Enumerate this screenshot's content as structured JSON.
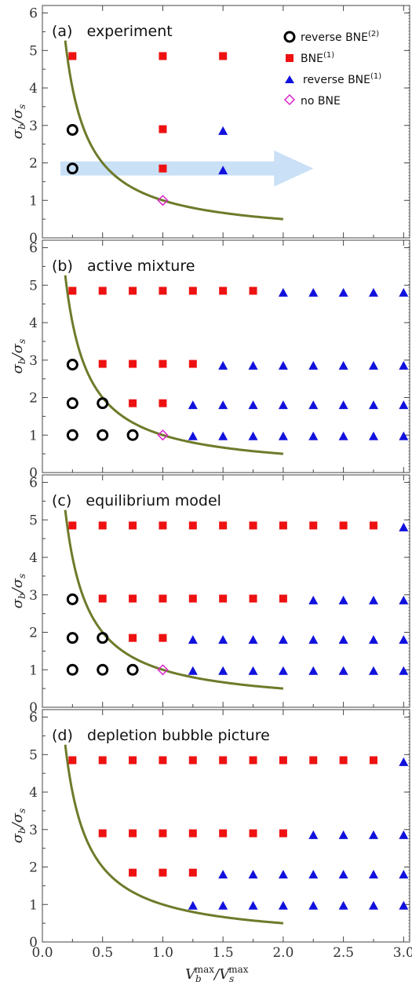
{
  "figure": {
    "xlabel_main": "V",
    "xlabel_sub_b": "b",
    "xlabel_sub_s": "s",
    "xlabel_sup": "max",
    "xlabel_sep": "/",
    "ylabel_main": "σ",
    "ylabel_sub_b": "b",
    "ylabel_sub_s": "s",
    "ylabel_sep": "/"
  },
  "legend": [
    {
      "marker": "circle",
      "label": "reverse BNE",
      "sup": "(2)"
    },
    {
      "marker": "square",
      "label": "BNE",
      "sup": "(1)"
    },
    {
      "marker": "triangle",
      "label": "reverse BNE",
      "sup": "(1)"
    },
    {
      "marker": "diamond",
      "label": "no BNE",
      "sup": ""
    }
  ],
  "colors": {
    "curve": "#6f7a2a",
    "square": "#ee1111",
    "triangle": "#1111dd",
    "circle": "#000000",
    "diamond": "#dd22cc",
    "arrow": "#c6def5"
  },
  "chart_data": [
    {
      "type": "scatter",
      "title": "(a)   experiment",
      "xlim": [
        0,
        3.05
      ],
      "ylim": [
        0,
        6.2
      ],
      "xticks": [
        0.0,
        0.5,
        1.0,
        1.5,
        2.0,
        2.5,
        3.0
      ],
      "yticks": [
        0,
        1,
        2,
        3,
        4,
        5,
        6
      ],
      "curve": {
        "formula": "y = 1/x",
        "xrange": [
          0.19,
          2.0
        ]
      },
      "arrow": {
        "from": [
          0.15,
          1.85
        ],
        "to": [
          2.25,
          1.85
        ]
      },
      "circles": [
        [
          0.25,
          1.85
        ],
        [
          0.25,
          2.88
        ]
      ],
      "squares": [
        [
          0.25,
          4.85
        ],
        [
          1.0,
          1.85
        ],
        [
          1.0,
          2.9
        ],
        [
          1.0,
          4.85
        ],
        [
          1.5,
          4.85
        ]
      ],
      "triangles": [
        [
          1.5,
          1.8
        ],
        [
          1.5,
          2.85
        ]
      ],
      "diamonds": [
        [
          1.0,
          1.0
        ]
      ]
    },
    {
      "type": "scatter",
      "title": "(b)   active mixture",
      "xlim": [
        0,
        3.05
      ],
      "ylim": [
        0,
        6.2
      ],
      "xticks": [
        0.0,
        0.5,
        1.0,
        1.5,
        2.0,
        2.5,
        3.0
      ],
      "yticks": [
        0,
        1,
        2,
        3,
        4,
        5,
        6
      ],
      "curve": {
        "formula": "y = 1/x",
        "xrange": [
          0.19,
          2.0
        ]
      },
      "circles": [
        [
          0.25,
          1.0
        ],
        [
          0.5,
          1.0
        ],
        [
          0.75,
          1.0
        ],
        [
          0.25,
          1.85
        ],
        [
          0.5,
          1.85
        ],
        [
          0.25,
          2.88
        ]
      ],
      "squares": [
        [
          0.75,
          1.85
        ],
        [
          1.0,
          1.85
        ],
        [
          0.5,
          2.9
        ],
        [
          0.75,
          2.9
        ],
        [
          1.0,
          2.9
        ],
        [
          1.25,
          2.9
        ],
        [
          0.25,
          4.85
        ],
        [
          0.5,
          4.85
        ],
        [
          0.75,
          4.85
        ],
        [
          1.0,
          4.85
        ],
        [
          1.25,
          4.85
        ],
        [
          1.5,
          4.85
        ],
        [
          1.75,
          4.85
        ]
      ],
      "triangles": [
        [
          1.25,
          0.97
        ],
        [
          1.5,
          0.97
        ],
        [
          1.75,
          0.97
        ],
        [
          2.0,
          0.97
        ],
        [
          2.25,
          0.97
        ],
        [
          2.5,
          0.97
        ],
        [
          2.75,
          0.97
        ],
        [
          3.0,
          0.97
        ],
        [
          1.25,
          1.8
        ],
        [
          1.5,
          1.8
        ],
        [
          1.75,
          1.8
        ],
        [
          2.0,
          1.8
        ],
        [
          2.25,
          1.8
        ],
        [
          2.5,
          1.8
        ],
        [
          2.75,
          1.8
        ],
        [
          3.0,
          1.8
        ],
        [
          1.5,
          2.85
        ],
        [
          1.75,
          2.85
        ],
        [
          2.0,
          2.85
        ],
        [
          2.25,
          2.85
        ],
        [
          2.5,
          2.85
        ],
        [
          2.75,
          2.85
        ],
        [
          3.0,
          2.85
        ],
        [
          2.0,
          4.8
        ],
        [
          2.25,
          4.8
        ],
        [
          2.5,
          4.8
        ],
        [
          2.75,
          4.8
        ],
        [
          3.0,
          4.8
        ]
      ],
      "diamonds": [
        [
          1.0,
          1.0
        ]
      ]
    },
    {
      "type": "scatter",
      "title": "(c)   equilibrium model",
      "xlim": [
        0,
        3.05
      ],
      "ylim": [
        0,
        6.2
      ],
      "xticks": [
        0.0,
        0.5,
        1.0,
        1.5,
        2.0,
        2.5,
        3.0
      ],
      "yticks": [
        0,
        1,
        2,
        3,
        4,
        5,
        6
      ],
      "curve": {
        "formula": "y = 1/x",
        "xrange": [
          0.19,
          2.0
        ]
      },
      "circles": [
        [
          0.25,
          1.0
        ],
        [
          0.5,
          1.0
        ],
        [
          0.75,
          1.0
        ],
        [
          0.25,
          1.85
        ],
        [
          0.5,
          1.85
        ],
        [
          0.25,
          2.88
        ]
      ],
      "squares": [
        [
          0.75,
          1.85
        ],
        [
          1.0,
          1.85
        ],
        [
          0.5,
          2.9
        ],
        [
          0.75,
          2.9
        ],
        [
          1.0,
          2.9
        ],
        [
          1.25,
          2.9
        ],
        [
          1.5,
          2.9
        ],
        [
          1.75,
          2.9
        ],
        [
          2.0,
          2.9
        ],
        [
          0.25,
          4.85
        ],
        [
          0.5,
          4.85
        ],
        [
          0.75,
          4.85
        ],
        [
          1.0,
          4.85
        ],
        [
          1.25,
          4.85
        ],
        [
          1.5,
          4.85
        ],
        [
          1.75,
          4.85
        ],
        [
          2.0,
          4.85
        ],
        [
          2.25,
          4.85
        ],
        [
          2.5,
          4.85
        ],
        [
          2.75,
          4.85
        ]
      ],
      "triangles": [
        [
          1.25,
          0.97
        ],
        [
          1.5,
          0.97
        ],
        [
          1.75,
          0.97
        ],
        [
          2.0,
          0.97
        ],
        [
          2.25,
          0.97
        ],
        [
          2.5,
          0.97
        ],
        [
          2.75,
          0.97
        ],
        [
          3.0,
          0.97
        ],
        [
          1.25,
          1.8
        ],
        [
          1.5,
          1.8
        ],
        [
          1.75,
          1.8
        ],
        [
          2.0,
          1.8
        ],
        [
          2.25,
          1.8
        ],
        [
          2.5,
          1.8
        ],
        [
          2.75,
          1.8
        ],
        [
          3.0,
          1.8
        ],
        [
          2.25,
          2.85
        ],
        [
          2.5,
          2.85
        ],
        [
          2.75,
          2.85
        ],
        [
          3.0,
          2.85
        ],
        [
          3.0,
          4.8
        ]
      ],
      "diamonds": [
        [
          1.0,
          1.0
        ]
      ]
    },
    {
      "type": "scatter",
      "title": "(d)   depletion bubble picture",
      "xlim": [
        0,
        3.05
      ],
      "ylim": [
        0,
        6.2
      ],
      "xticks": [
        0.0,
        0.5,
        1.0,
        1.5,
        2.0,
        2.5,
        3.0
      ],
      "yticks": [
        0,
        1,
        2,
        3,
        4,
        5,
        6
      ],
      "curve": {
        "formula": "y = 1/x",
        "xrange": [
          0.19,
          2.0
        ]
      },
      "circles": [],
      "squares": [
        [
          0.75,
          1.85
        ],
        [
          1.0,
          1.85
        ],
        [
          1.25,
          1.85
        ],
        [
          0.5,
          2.9
        ],
        [
          0.75,
          2.9
        ],
        [
          1.0,
          2.9
        ],
        [
          1.25,
          2.9
        ],
        [
          1.5,
          2.9
        ],
        [
          1.75,
          2.9
        ],
        [
          2.0,
          2.9
        ],
        [
          0.25,
          4.85
        ],
        [
          0.5,
          4.85
        ],
        [
          0.75,
          4.85
        ],
        [
          1.0,
          4.85
        ],
        [
          1.25,
          4.85
        ],
        [
          1.5,
          4.85
        ],
        [
          1.75,
          4.85
        ],
        [
          2.0,
          4.85
        ],
        [
          2.25,
          4.85
        ],
        [
          2.5,
          4.85
        ],
        [
          2.75,
          4.85
        ]
      ],
      "triangles": [
        [
          1.25,
          0.97
        ],
        [
          1.5,
          0.97
        ],
        [
          1.75,
          0.97
        ],
        [
          2.0,
          0.97
        ],
        [
          2.25,
          0.97
        ],
        [
          2.5,
          0.97
        ],
        [
          2.75,
          0.97
        ],
        [
          3.0,
          0.97
        ],
        [
          1.5,
          1.8
        ],
        [
          1.75,
          1.8
        ],
        [
          2.0,
          1.8
        ],
        [
          2.25,
          1.8
        ],
        [
          2.5,
          1.8
        ],
        [
          2.75,
          1.8
        ],
        [
          3.0,
          1.8
        ],
        [
          2.25,
          2.85
        ],
        [
          2.5,
          2.85
        ],
        [
          2.75,
          2.85
        ],
        [
          3.0,
          2.85
        ],
        [
          3.0,
          4.8
        ]
      ],
      "diamonds": []
    }
  ]
}
